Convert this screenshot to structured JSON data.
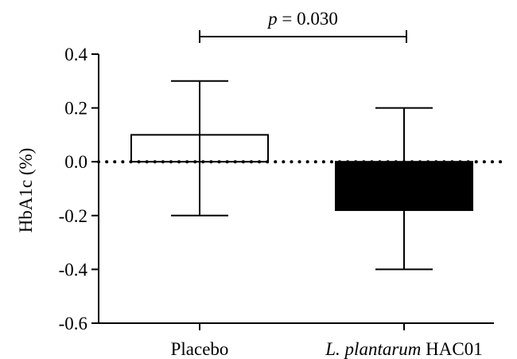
{
  "chart_data": {
    "type": "bar",
    "title": "",
    "xlabel": "",
    "ylabel": "HbA1c (%)",
    "ylim": [
      -0.6,
      0.4
    ],
    "yticks": [
      "0.4",
      "0.2",
      "0.0",
      "-0.2",
      "-0.4",
      "-0.6"
    ],
    "ytick_values": [
      0.4,
      0.2,
      0.0,
      -0.2,
      -0.4,
      -0.6
    ],
    "categories": [
      {
        "plain": "Placebo",
        "italic": "",
        "rest": ""
      },
      {
        "plain": "",
        "italic": "L. plantarum",
        "rest": " HAC01"
      }
    ],
    "values": [
      0.1,
      -0.18
    ],
    "error_upper": [
      0.3,
      0.2
    ],
    "error_lower": [
      -0.2,
      -0.4
    ],
    "bar_fill": [
      "#ffffff",
      "#000000"
    ],
    "bar_stroke": "#000000",
    "reference_line": {
      "y": 0.0,
      "style": "dotted"
    },
    "grid": false,
    "legend": "none",
    "annotation": {
      "italic": "p",
      "text": " = 0.030"
    }
  }
}
